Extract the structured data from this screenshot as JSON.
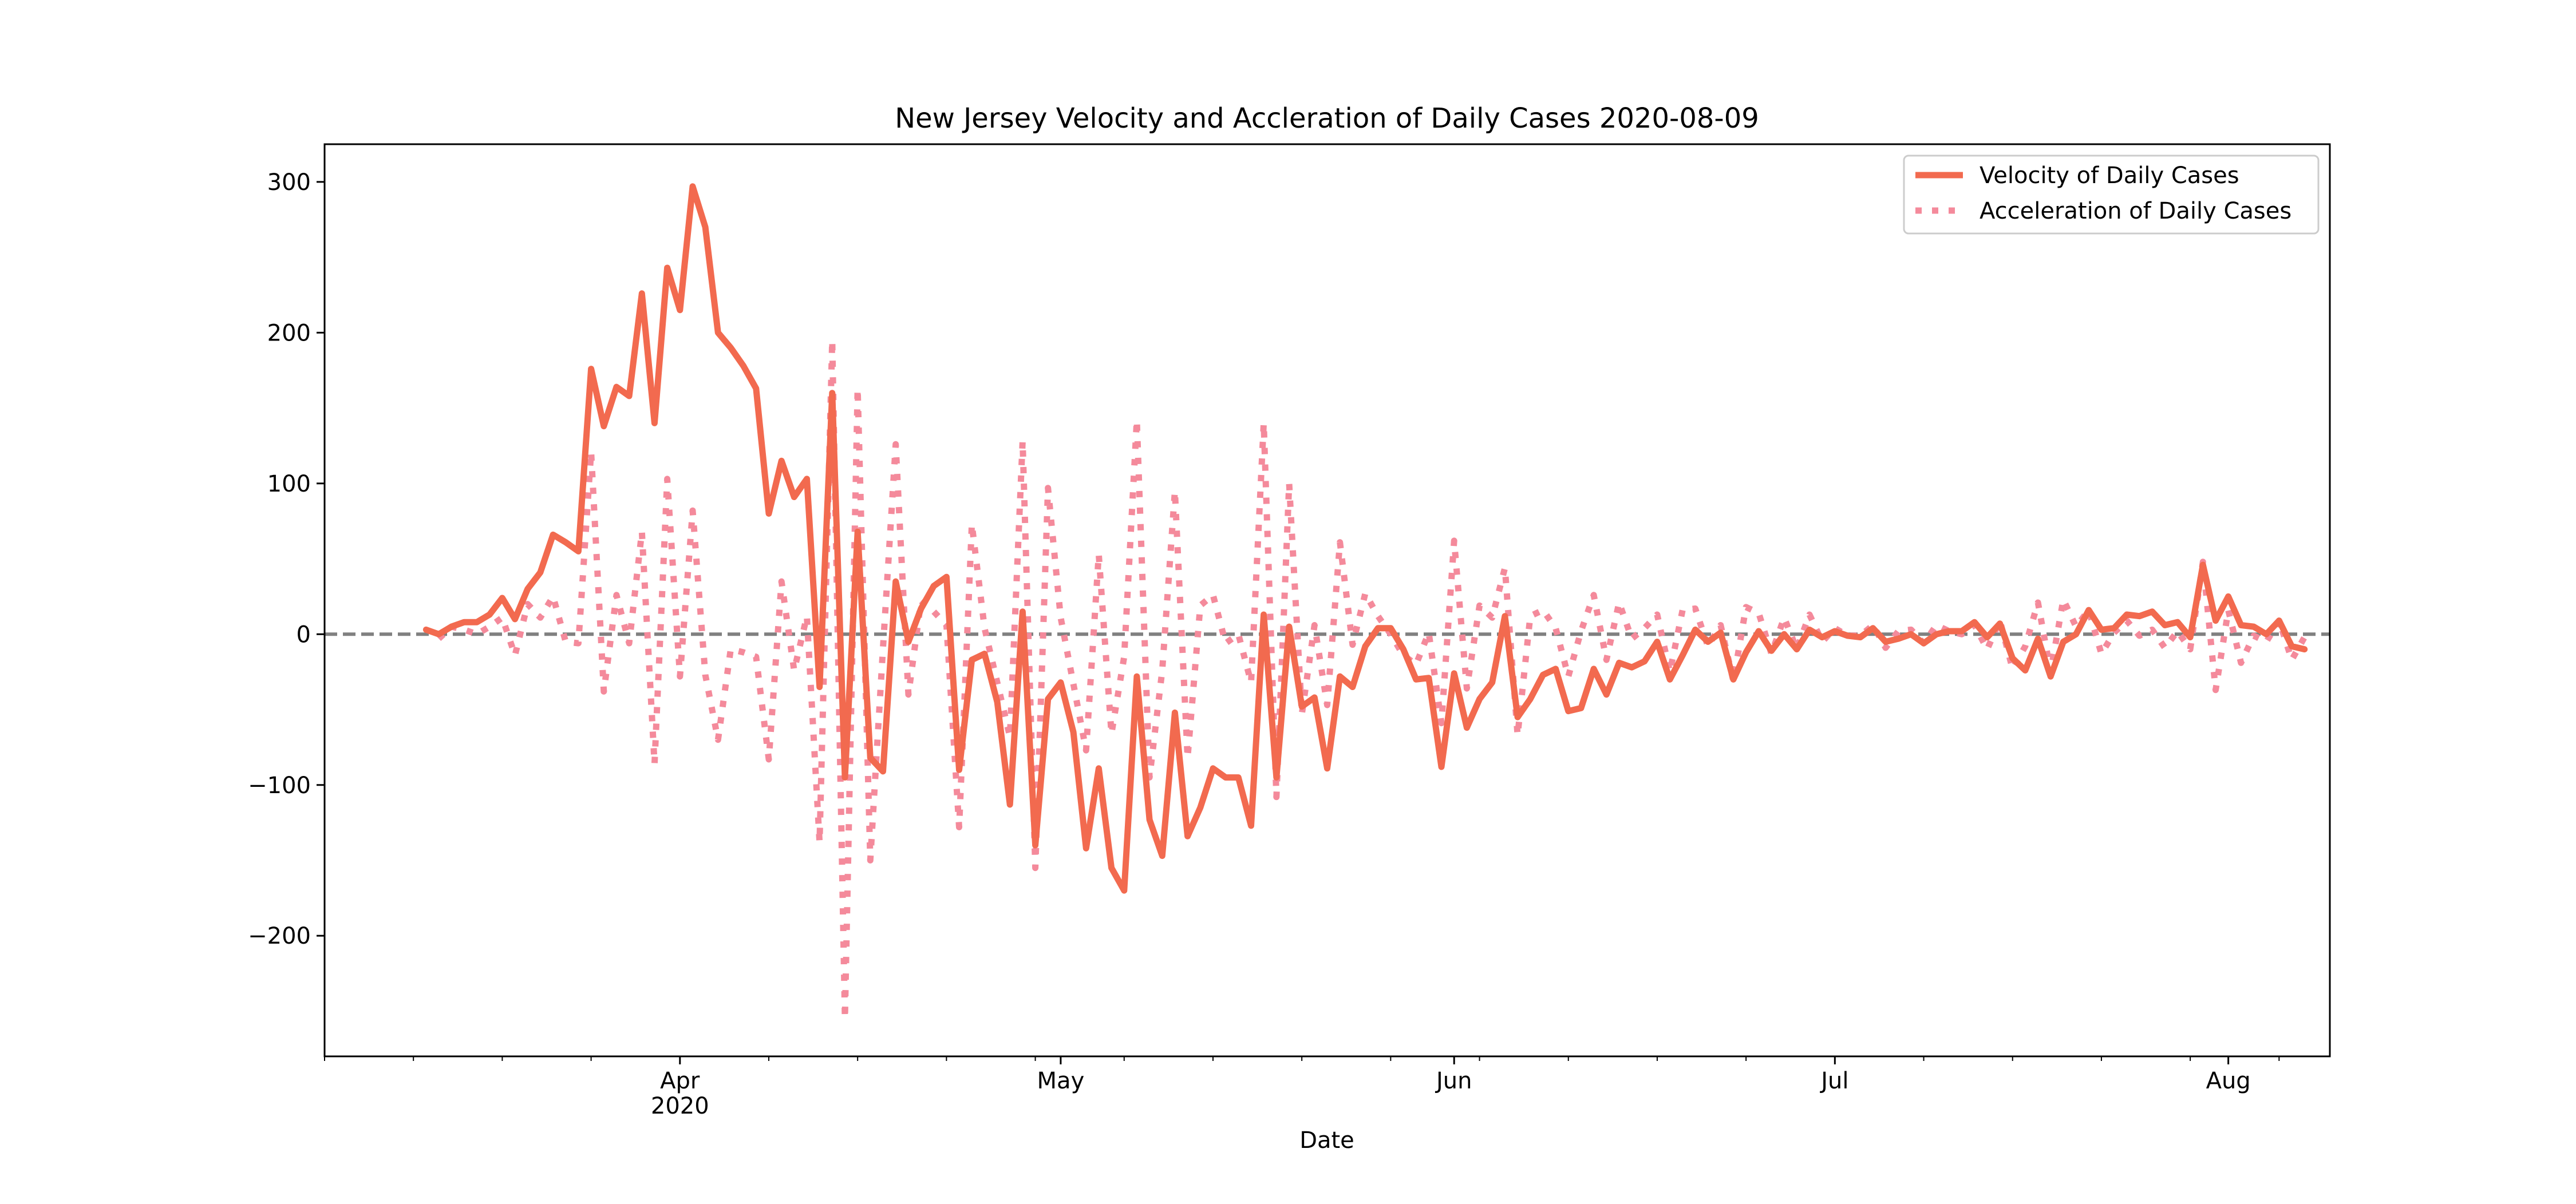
{
  "chart_data": {
    "type": "line",
    "title": "New Jersey Velocity and Accleration of Daily Cases 2020-08-09",
    "xlabel": "Date",
    "ylabel": "",
    "x_axis": {
      "kind": "date",
      "range": [
        "2020-03-04",
        "2020-08-09"
      ],
      "major_ticks": [
        {
          "date": "2020-04-01",
          "label": "Apr",
          "sublabel": "2020"
        },
        {
          "date": "2020-05-01",
          "label": "May",
          "sublabel": ""
        },
        {
          "date": "2020-06-01",
          "label": "Jun",
          "sublabel": ""
        },
        {
          "date": "2020-07-01",
          "label": "Jul",
          "sublabel": ""
        },
        {
          "date": "2020-08-01",
          "label": "Aug",
          "sublabel": ""
        }
      ]
    },
    "y_axis": {
      "range": [
        -280,
        325
      ],
      "ticks": [
        {
          "value": 300,
          "label": "300"
        },
        {
          "value": 200,
          "label": "200"
        },
        {
          "value": 100,
          "label": "100"
        },
        {
          "value": 0,
          "label": "0"
        },
        {
          "value": -100,
          "label": "−100"
        },
        {
          "value": -200,
          "label": "−200"
        }
      ]
    },
    "reference_line": {
      "y": 0,
      "style": "dashed",
      "color": "#808080"
    },
    "grid": false,
    "legend": {
      "position": "top-right"
    },
    "series": [
      {
        "name": "Velocity of Daily Cases",
        "style": "solid",
        "color": "#f26a4f",
        "start_date": "2020-03-12",
        "values": [
          3,
          0,
          5,
          8,
          8,
          13,
          24,
          10,
          30,
          41,
          66,
          61,
          55,
          176,
          138,
          164,
          158,
          226,
          140,
          243,
          215,
          297,
          270,
          200,
          190,
          178,
          163,
          80,
          115,
          91,
          103,
          -35,
          160,
          -95,
          68,
          -82,
          -91,
          35,
          -5,
          17,
          32,
          38,
          -90,
          -17,
          -13,
          -45,
          -113,
          15,
          -140,
          -43,
          -32,
          -65,
          -142,
          -89,
          -155,
          -170,
          -28,
          -123,
          -147,
          -52,
          -134,
          -115,
          -89,
          -95,
          -95,
          -127,
          13,
          -95,
          5,
          -48,
          -42,
          -89,
          -28,
          -35,
          -8,
          4,
          4,
          -10,
          -30,
          -29,
          -88,
          -26,
          -62,
          -43,
          -32,
          12,
          -55,
          -43,
          -27,
          -23,
          -51,
          -49,
          -23,
          -40,
          -19,
          -22,
          -18,
          -5,
          -30,
          -14,
          3,
          -5,
          1,
          -30,
          -12,
          2,
          -11,
          0,
          -10,
          3,
          -2,
          2,
          -1,
          -2,
          4,
          -5,
          -3,
          0,
          -6,
          0,
          2,
          2,
          8,
          -2,
          7,
          -16,
          -24,
          -3,
          -28,
          -5,
          0,
          16,
          3,
          4,
          13,
          12,
          15,
          6,
          8,
          -2,
          46,
          9,
          25,
          6,
          5,
          0,
          9,
          -8,
          -10
        ]
      },
      {
        "name": "Acceleration of Daily Cases",
        "style": "dotted",
        "color": "#f48a9b",
        "start_date": "2020-03-13",
        "values": [
          -3,
          5,
          3,
          0,
          5,
          11,
          -14,
          20,
          11,
          25,
          -5,
          -6,
          121,
          -38,
          26,
          -6,
          68,
          -86,
          103,
          -28,
          82,
          -27,
          -70,
          -10,
          -12,
          -15,
          -83,
          35,
          -24,
          12,
          -138,
          195,
          -255,
          163,
          -150,
          -9,
          126,
          -40,
          22,
          15,
          6,
          -128,
          73,
          4,
          -32,
          -68,
          128,
          -155,
          97,
          11,
          -33,
          -77,
          53,
          -66,
          -15,
          142,
          -95,
          -24,
          95,
          -82,
          19,
          26,
          -6,
          0,
          -32,
          140,
          -108,
          100,
          -53,
          6,
          -47,
          61,
          -7,
          27,
          12,
          0,
          -14,
          -20,
          1,
          -59,
          62,
          -36,
          19,
          11,
          44,
          -67,
          12,
          16,
          4,
          -28,
          2,
          26,
          -17,
          21,
          -3,
          4,
          13,
          -25,
          16,
          17,
          -8,
          6,
          -31,
          18,
          14,
          -13,
          11,
          -10,
          13,
          -5,
          4,
          -1,
          -1,
          6,
          -9,
          2,
          3,
          -6,
          6,
          2,
          0,
          6,
          -10,
          9,
          -23,
          -8,
          21,
          -25,
          23,
          5,
          16,
          -13,
          1,
          9,
          -1,
          3,
          -9,
          2,
          -10,
          48,
          -37,
          16,
          -19,
          -1,
          -5,
          9,
          -17,
          -2
        ]
      }
    ]
  }
}
